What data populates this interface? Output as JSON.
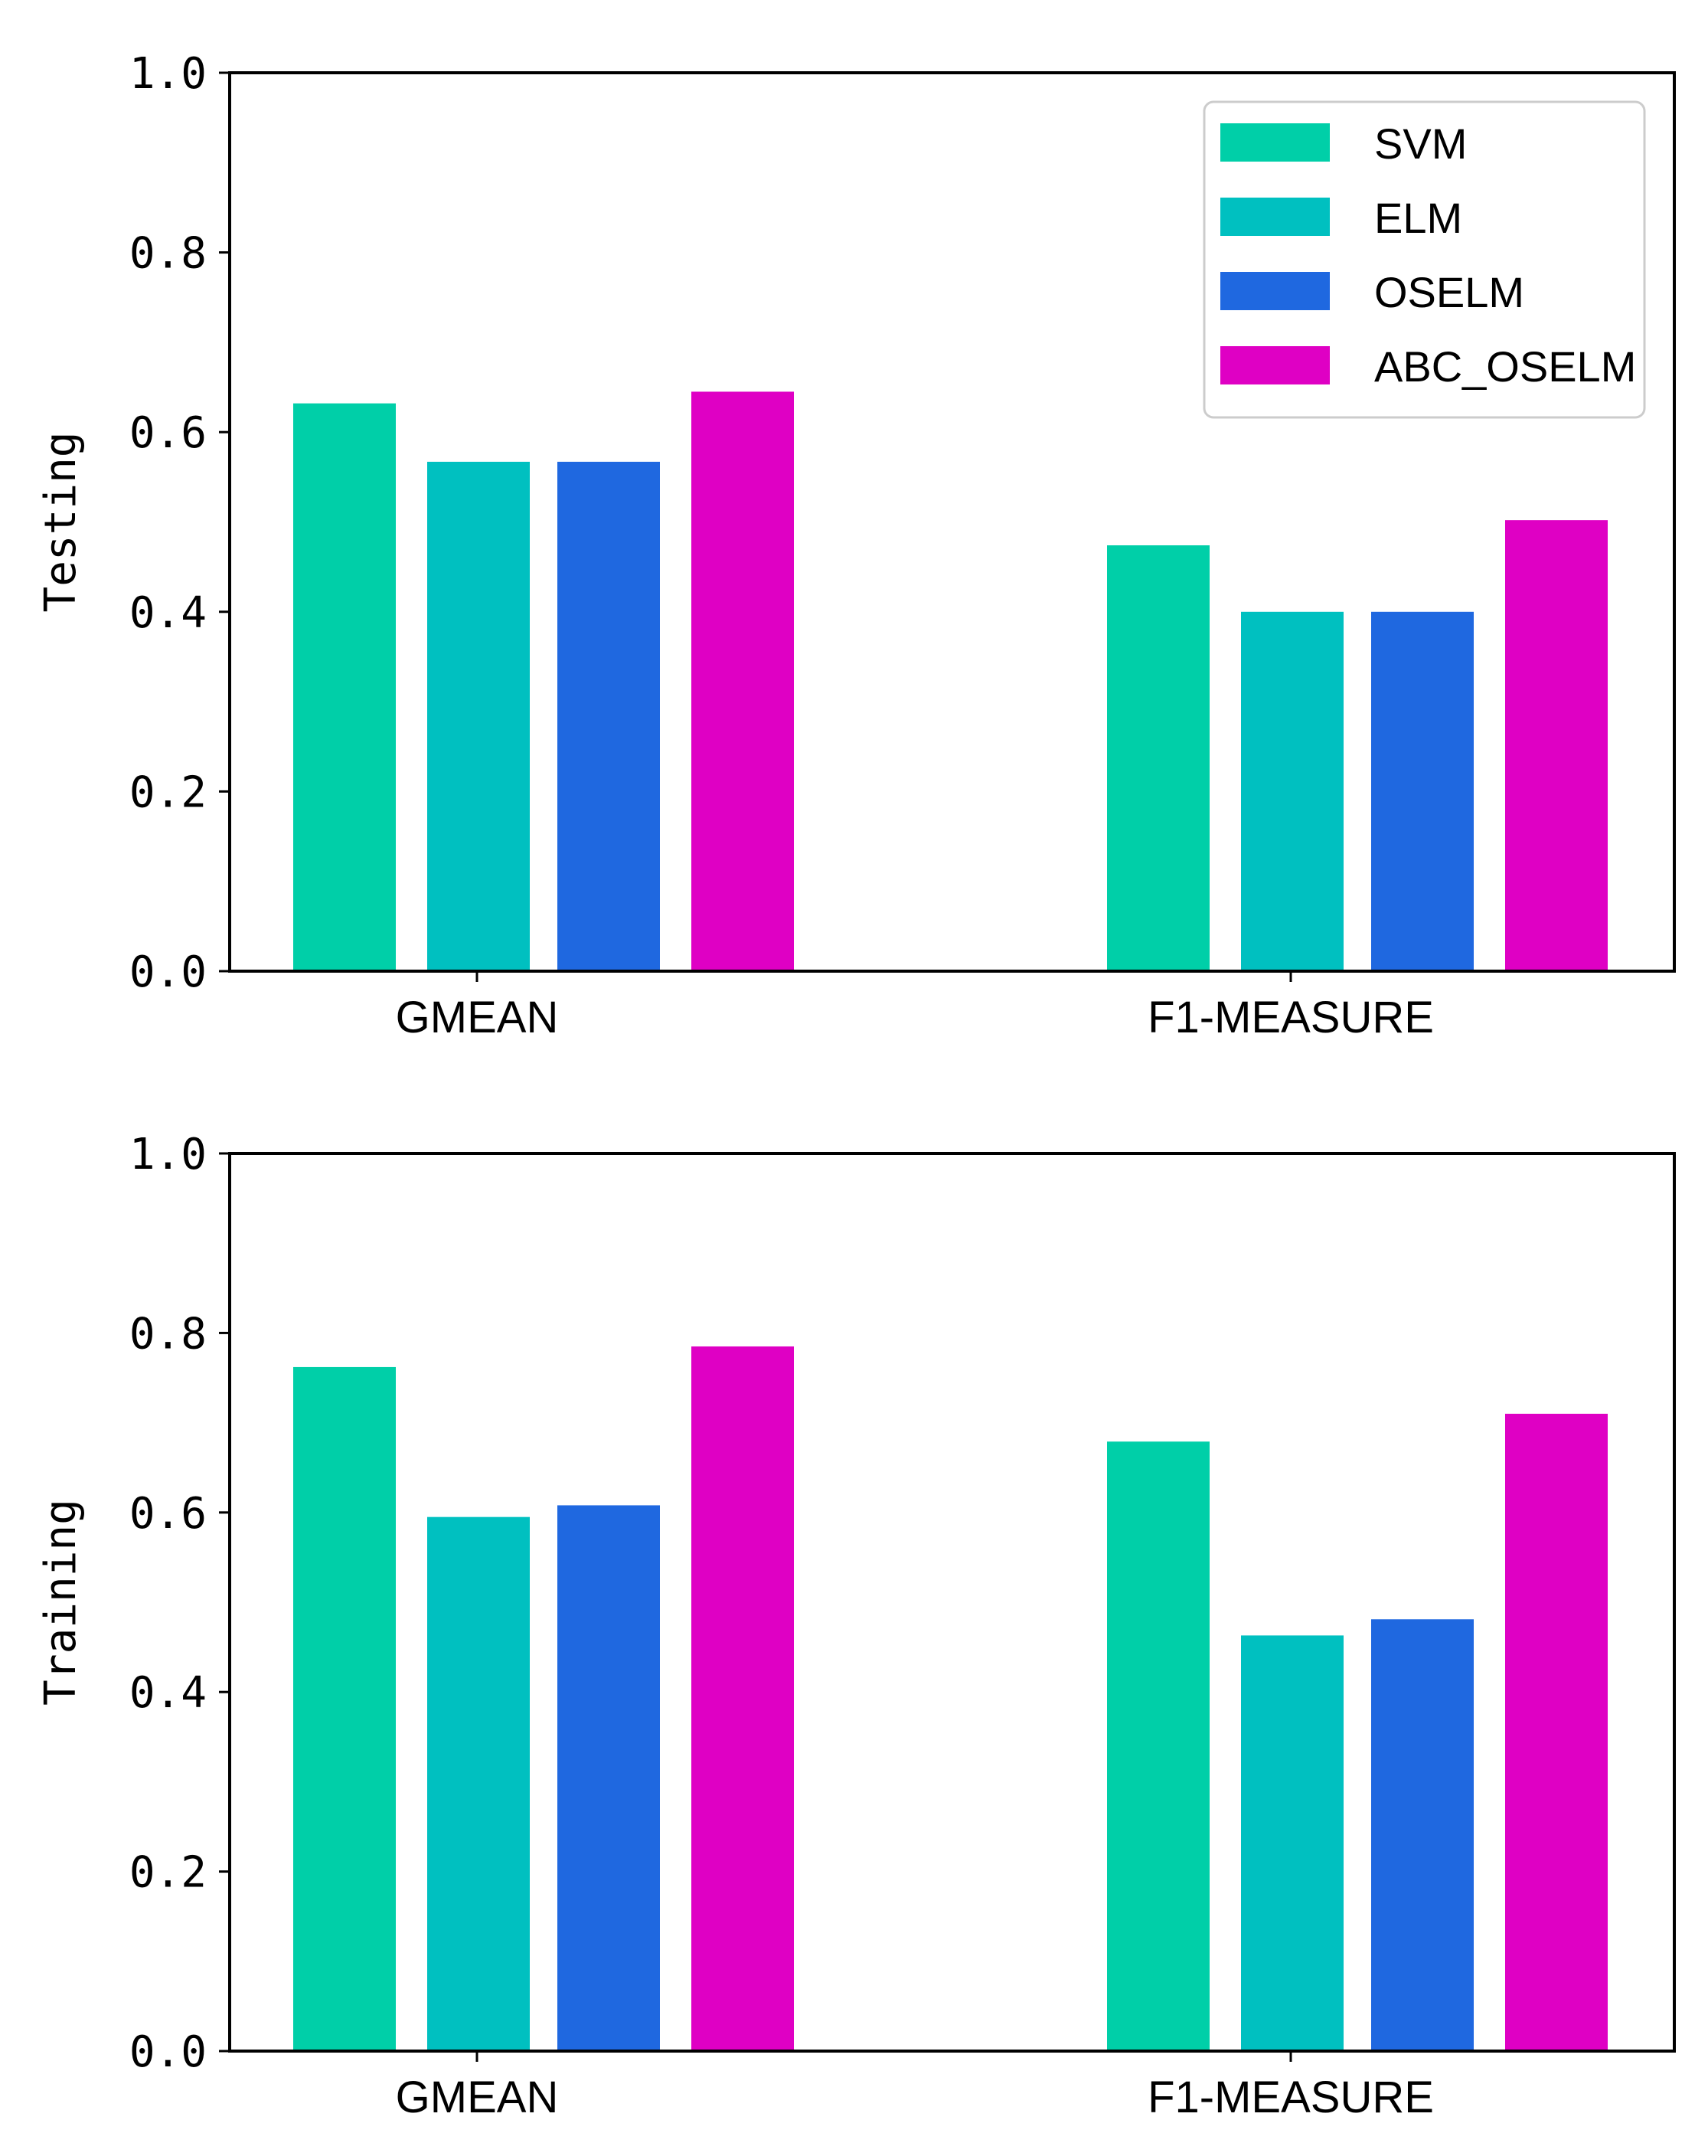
{
  "chart_data": [
    {
      "type": "bar",
      "ylabel": "Testing",
      "xlabel": "",
      "categories": [
        "GMEAN",
        "F1-MEASURE"
      ],
      "ylim": [
        0,
        1.0
      ],
      "yticks": [
        "0.0",
        "0.2",
        "0.4",
        "0.6",
        "0.8",
        "1.0"
      ],
      "series": [
        {
          "name": "SVM",
          "color": "#00cfa8",
          "values": [
            0.632,
            0.474
          ]
        },
        {
          "name": "ELM",
          "color": "#00c0c0",
          "values": [
            0.567,
            0.4
          ]
        },
        {
          "name": "OSELM",
          "color": "#1f68e0",
          "values": [
            0.567,
            0.4
          ]
        },
        {
          "name": "ABC_OSELM",
          "color": "#df00c4",
          "values": [
            0.645,
            0.502
          ]
        }
      ],
      "legend": {
        "position": "top-right",
        "labels": [
          "SVM",
          "ELM",
          "OSELM",
          "ABC_OSELM"
        ]
      }
    },
    {
      "type": "bar",
      "ylabel": "Training",
      "xlabel": "",
      "categories": [
        "GMEAN",
        "F1-MEASURE"
      ],
      "ylim": [
        0,
        1.0
      ],
      "yticks": [
        "0.0",
        "0.2",
        "0.4",
        "0.6",
        "0.8",
        "1.0"
      ],
      "series": [
        {
          "name": "SVM",
          "color": "#00cfa8",
          "values": [
            0.762,
            0.679
          ]
        },
        {
          "name": "ELM",
          "color": "#00c0c0",
          "values": [
            0.595,
            0.463
          ]
        },
        {
          "name": "OSELM",
          "color": "#1f68e0",
          "values": [
            0.608,
            0.481
          ]
        },
        {
          "name": "ABC_OSELM",
          "color": "#df00c4",
          "values": [
            0.785,
            0.71
          ]
        }
      ]
    }
  ]
}
